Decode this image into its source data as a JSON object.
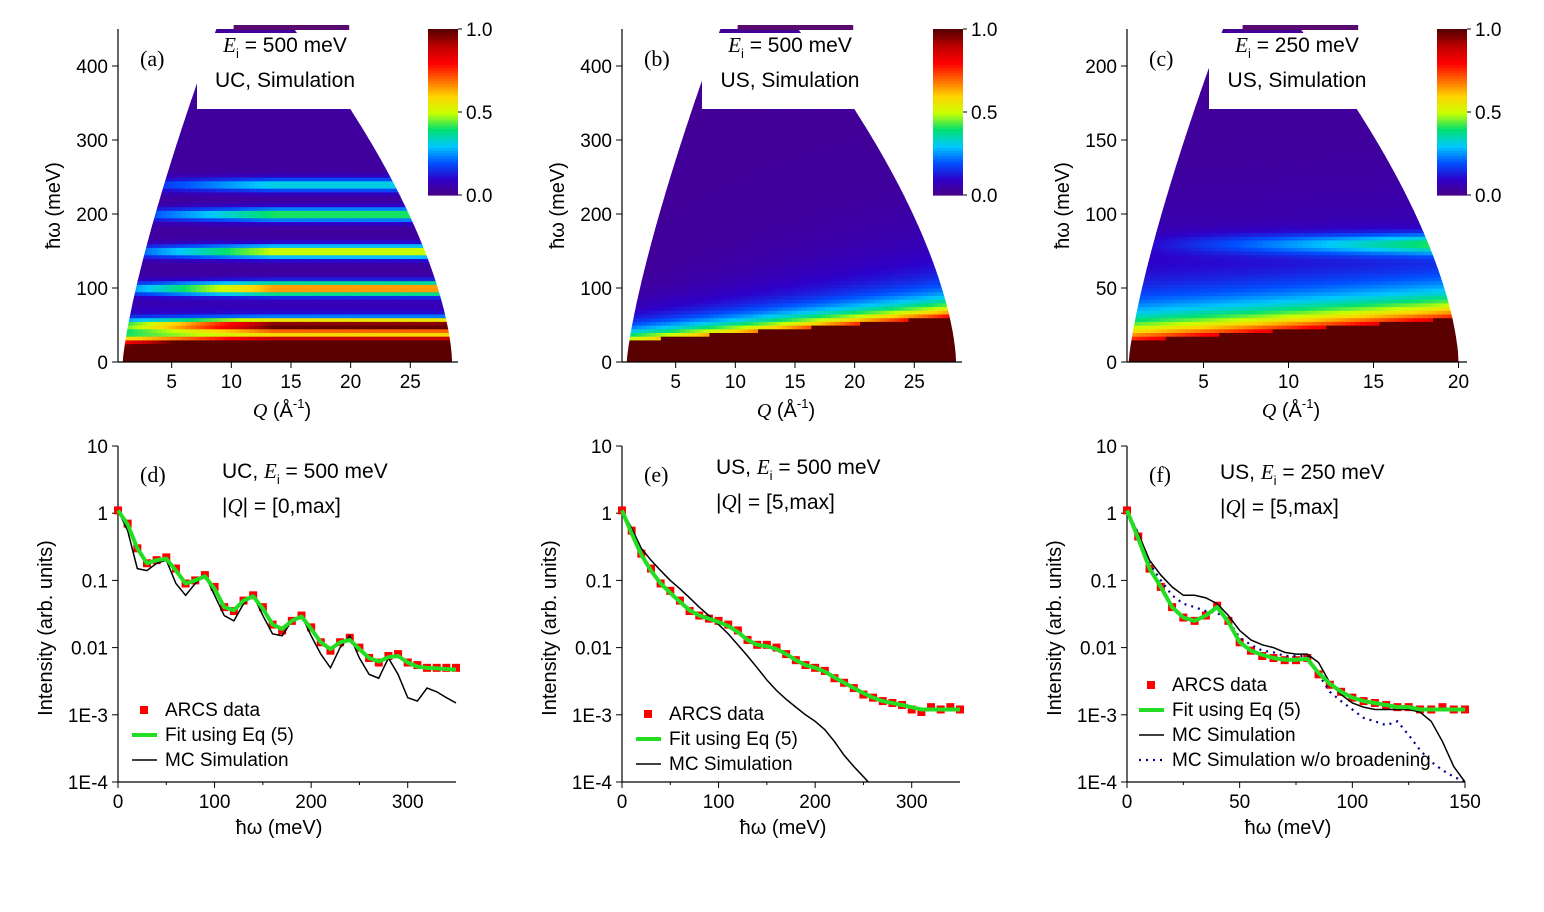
{
  "colorbar": {
    "stops": [
      "#4b0082",
      "#2e00c8",
      "#0050ff",
      "#00c8ff",
      "#00e070",
      "#c8ff00",
      "#ffd400",
      "#ff6a00",
      "#ff0000",
      "#c00000",
      "#5a0000"
    ]
  },
  "chart_data": [
    {
      "type": "heatmap",
      "panel": "(a)",
      "title_line1_sym": "E",
      "title_line1_sub": "i",
      "title_line1_rest": " = 500 meV",
      "title_line2": "UC, Simulation",
      "xlabel": "Q (Å-1)",
      "xlabel_sym": "Q",
      "xlabel_unit": "(Å",
      "xlabel_exp": "-1",
      "xlabel_close": ")",
      "ylabel": "ħω (meV)",
      "xlim": [
        0.5,
        29
      ],
      "ylim": [
        0,
        450
      ],
      "xticks": [
        5,
        10,
        15,
        20,
        25
      ],
      "yticks": [
        0,
        100,
        200,
        300,
        400
      ],
      "emax": 500,
      "qmax_at_0": 28.5,
      "qmin_at_0": 0.9,
      "colorbar_range": [
        0.0,
        1.0
      ],
      "colorbar_ticks": [
        "1.0",
        "0.5",
        "0.0"
      ],
      "features": "bright bands near 25, 50, 100, 150, 200 meV increasing intensity with Q"
    },
    {
      "type": "heatmap",
      "panel": "(b)",
      "title_line1_sym": "E",
      "title_line1_sub": "i",
      "title_line1_rest": " = 500 meV",
      "title_line2": "US, Simulation",
      "xlabel": "Q (Å-1)",
      "xlabel_sym": "Q",
      "xlabel_unit": "(Å",
      "xlabel_exp": "-1",
      "xlabel_close": ")",
      "ylabel": "ħω (meV)",
      "xlim": [
        0.5,
        29
      ],
      "ylim": [
        0,
        450
      ],
      "xticks": [
        5,
        10,
        15,
        20,
        25
      ],
      "yticks": [
        0,
        100,
        200,
        300,
        400
      ],
      "emax": 500,
      "qmax_at_0": 28.5,
      "qmin_at_0": 0.9,
      "colorbar_range": [
        0.0,
        1.0
      ],
      "colorbar_ticks": [
        "1.0",
        "0.5",
        "0.0"
      ],
      "features": "broad continuum rising from ~30 meV at low Q to ~70 meV at high Q"
    },
    {
      "type": "heatmap",
      "panel": "(c)",
      "title_line1_sym": "E",
      "title_line1_sub": "i",
      "title_line1_rest": " = 250 meV",
      "title_line2": "US, Simulation",
      "xlabel": "Q (Å-1)",
      "xlabel_sym": "Q",
      "xlabel_unit": "(Å",
      "xlabel_exp": "-1",
      "xlabel_close": ")",
      "ylabel": "ħω (meV)",
      "xlim": [
        0.5,
        20.5
      ],
      "ylim": [
        0,
        225
      ],
      "xticks": [
        5,
        10,
        15,
        20
      ],
      "yticks": [
        0,
        50,
        100,
        150,
        200
      ],
      "emax": 250,
      "qmax_at_0": 20.0,
      "qmin_at_0": 0.6,
      "colorbar_range": [
        0.0,
        1.0
      ],
      "colorbar_ticks": [
        "1.0",
        "0.5",
        "0.0"
      ],
      "features": "low-energy continuum band 15–45 meV, faint band near 80 meV at high Q"
    },
    {
      "type": "line",
      "panel": "(d)",
      "ann_line1_pre": "UC, ",
      "ann_line1_sym": "E",
      "ann_line1_sub": "i",
      "ann_line1_rest": " = 500 meV",
      "ann_line2_pre": "|",
      "ann_line2_sym": "Q",
      "ann_line2_rest": "| = [0,max]",
      "xlabel": "ħω (meV)",
      "ylabel": "Intensity (arb. units)",
      "xlim": [
        0,
        350
      ],
      "ylim": [
        0.0001,
        10
      ],
      "yscale": "log",
      "xticks": [
        "0",
        "100",
        "200",
        "300"
      ],
      "xtick_values": [
        0,
        100,
        200,
        300
      ],
      "yticks": [
        "1E-4",
        "1E-3",
        "0.01",
        "0.1",
        "1",
        "10"
      ],
      "ytick_values": [
        0.0001,
        0.001,
        0.01,
        0.1,
        1,
        10
      ],
      "legend": [
        "ARCS data",
        "Fit using Eq (5)",
        "MC Simulation"
      ],
      "series": [
        {
          "name": "ARCS data",
          "style": "square-markers",
          "color": "#ff0000",
          "x": [
            0,
            10,
            20,
            30,
            40,
            50,
            60,
            70,
            80,
            90,
            100,
            110,
            120,
            130,
            140,
            150,
            160,
            170,
            180,
            190,
            200,
            210,
            220,
            230,
            240,
            250,
            260,
            270,
            280,
            290,
            300,
            310,
            320,
            330,
            340,
            350
          ],
          "y": [
            1.1,
            0.7,
            0.3,
            0.18,
            0.2,
            0.22,
            0.15,
            0.09,
            0.1,
            0.12,
            0.08,
            0.04,
            0.035,
            0.05,
            0.06,
            0.04,
            0.022,
            0.018,
            0.025,
            0.03,
            0.02,
            0.012,
            0.009,
            0.012,
            0.014,
            0.01,
            0.007,
            0.006,
            0.0075,
            0.008,
            0.006,
            0.0055,
            0.005,
            0.005,
            0.005,
            0.005
          ]
        },
        {
          "name": "Fit using Eq (5)",
          "style": "line",
          "color": "#22dd22",
          "x": [
            0,
            10,
            20,
            30,
            40,
            50,
            60,
            70,
            80,
            90,
            100,
            110,
            120,
            130,
            140,
            150,
            160,
            170,
            180,
            190,
            200,
            210,
            220,
            230,
            240,
            250,
            260,
            270,
            280,
            290,
            300,
            310,
            320,
            330,
            340,
            350
          ],
          "y": [
            1.1,
            0.68,
            0.3,
            0.18,
            0.2,
            0.21,
            0.14,
            0.09,
            0.1,
            0.115,
            0.075,
            0.04,
            0.036,
            0.05,
            0.058,
            0.038,
            0.022,
            0.019,
            0.025,
            0.029,
            0.019,
            0.012,
            0.0095,
            0.012,
            0.013,
            0.0095,
            0.007,
            0.0062,
            0.0072,
            0.0075,
            0.006,
            0.0052,
            0.005,
            0.0049,
            0.0048,
            0.0047
          ]
        },
        {
          "name": "MC Simulation",
          "style": "line",
          "color": "#000000",
          "x": [
            0,
            10,
            20,
            30,
            40,
            50,
            60,
            70,
            80,
            90,
            100,
            110,
            120,
            130,
            140,
            150,
            160,
            170,
            180,
            190,
            200,
            210,
            220,
            230,
            240,
            250,
            260,
            270,
            280,
            290,
            300,
            310,
            320,
            330,
            340,
            350
          ],
          "y": [
            1.1,
            0.55,
            0.15,
            0.14,
            0.18,
            0.2,
            0.09,
            0.06,
            0.09,
            0.12,
            0.06,
            0.03,
            0.025,
            0.045,
            0.06,
            0.03,
            0.016,
            0.015,
            0.025,
            0.03,
            0.015,
            0.008,
            0.005,
            0.01,
            0.015,
            0.007,
            0.004,
            0.0035,
            0.007,
            0.004,
            0.0018,
            0.0016,
            0.0025,
            0.0022,
            0.0018,
            0.0015
          ]
        }
      ]
    },
    {
      "type": "line",
      "panel": "(e)",
      "ann_line1_pre": "US, ",
      "ann_line1_sym": "E",
      "ann_line1_sub": "i",
      "ann_line1_rest": " = 500 meV",
      "ann_line2_pre": "|",
      "ann_line2_sym": "Q",
      "ann_line2_rest": "| = [5,max]",
      "xlabel": "ħω (meV)",
      "ylabel": "Intensity (arb. units)",
      "xlim": [
        0,
        350
      ],
      "ylim": [
        0.0001,
        10
      ],
      "yscale": "log",
      "xticks": [
        "0",
        "100",
        "200",
        "300"
      ],
      "xtick_values": [
        0,
        100,
        200,
        300
      ],
      "yticks": [
        "1E-4",
        "1E-3",
        "0.01",
        "0.1",
        "1",
        "10"
      ],
      "ytick_values": [
        0.0001,
        0.001,
        0.01,
        0.1,
        1,
        10
      ],
      "legend": [
        "ARCS data",
        "Fit using Eq (5)",
        "MC Simulation"
      ],
      "series": [
        {
          "name": "ARCS data",
          "style": "square-markers",
          "color": "#ff0000",
          "x": [
            0,
            10,
            20,
            30,
            40,
            50,
            60,
            70,
            80,
            90,
            100,
            110,
            120,
            130,
            140,
            150,
            160,
            170,
            180,
            190,
            200,
            210,
            220,
            230,
            240,
            250,
            260,
            270,
            280,
            290,
            300,
            310,
            320,
            330,
            340,
            350
          ],
          "y": [
            1.1,
            0.55,
            0.25,
            0.15,
            0.09,
            0.07,
            0.05,
            0.035,
            0.03,
            0.027,
            0.025,
            0.022,
            0.018,
            0.013,
            0.011,
            0.011,
            0.01,
            0.008,
            0.0065,
            0.0055,
            0.005,
            0.0045,
            0.0035,
            0.003,
            0.0025,
            0.002,
            0.0018,
            0.0016,
            0.0015,
            0.0014,
            0.0012,
            0.0011,
            0.0013,
            0.0012,
            0.0013,
            0.0012
          ]
        },
        {
          "name": "Fit using Eq (5)",
          "style": "line",
          "color": "#22dd22",
          "x": [
            0,
            10,
            20,
            30,
            40,
            50,
            60,
            70,
            80,
            90,
            100,
            110,
            120,
            130,
            140,
            150,
            160,
            170,
            180,
            190,
            200,
            210,
            220,
            230,
            240,
            250,
            260,
            270,
            280,
            290,
            300,
            310,
            320,
            330,
            340,
            350
          ],
          "y": [
            1.1,
            0.5,
            0.24,
            0.14,
            0.09,
            0.065,
            0.048,
            0.036,
            0.03,
            0.027,
            0.024,
            0.021,
            0.017,
            0.013,
            0.011,
            0.0105,
            0.0095,
            0.008,
            0.0065,
            0.0055,
            0.005,
            0.0044,
            0.0036,
            0.003,
            0.0025,
            0.0021,
            0.0018,
            0.0016,
            0.0015,
            0.0014,
            0.0013,
            0.0012,
            0.0012,
            0.0012,
            0.0012,
            0.0012
          ]
        },
        {
          "name": "MC Simulation",
          "style": "line",
          "color": "#000000",
          "x": [
            0,
            10,
            20,
            30,
            40,
            50,
            60,
            70,
            80,
            90,
            100,
            110,
            120,
            130,
            140,
            150,
            160,
            170,
            180,
            190,
            200,
            210,
            220,
            230,
            240,
            250,
            255
          ],
          "y": [
            1.1,
            0.6,
            0.3,
            0.2,
            0.14,
            0.1,
            0.075,
            0.055,
            0.04,
            0.03,
            0.022,
            0.016,
            0.011,
            0.0075,
            0.005,
            0.0033,
            0.0023,
            0.0017,
            0.0013,
            0.001,
            0.0008,
            0.0006,
            0.0004,
            0.00025,
            0.00017,
            0.00012,
            0.0001
          ]
        }
      ]
    },
    {
      "type": "line",
      "panel": "(f)",
      "ann_line1_pre": "US, ",
      "ann_line1_sym": "E",
      "ann_line1_sub": "i",
      "ann_line1_rest": " = 250 meV",
      "ann_line2_pre": "|",
      "ann_line2_sym": "Q",
      "ann_line2_rest": "| = [5,max]",
      "xlabel": "ħω (meV)",
      "ylabel": "Intensity (arb. units)",
      "xlim": [
        0,
        150
      ],
      "ylim": [
        0.0001,
        10
      ],
      "yscale": "log",
      "xticks": [
        "0",
        "50",
        "100",
        "150"
      ],
      "xtick_values": [
        0,
        50,
        100,
        150
      ],
      "yticks": [
        "1E-4",
        "1E-3",
        "0.01",
        "0.1",
        "1",
        "10"
      ],
      "ytick_values": [
        0.0001,
        0.001,
        0.01,
        0.1,
        1,
        10
      ],
      "legend": [
        "ARCS data",
        "Fit using Eq (5)",
        "MC Simulation",
        "MC Simulation w/o broadening"
      ],
      "series": [
        {
          "name": "ARCS data",
          "style": "square-markers",
          "color": "#ff0000",
          "x": [
            0,
            5,
            10,
            15,
            20,
            25,
            30,
            35,
            40,
            45,
            50,
            55,
            60,
            65,
            70,
            75,
            80,
            85,
            90,
            95,
            100,
            105,
            110,
            115,
            120,
            125,
            130,
            135,
            140,
            145,
            150
          ],
          "y": [
            1.1,
            0.45,
            0.15,
            0.08,
            0.04,
            0.028,
            0.025,
            0.03,
            0.042,
            0.025,
            0.012,
            0.009,
            0.0075,
            0.007,
            0.0065,
            0.0065,
            0.007,
            0.004,
            0.0028,
            0.0022,
            0.0018,
            0.0016,
            0.0015,
            0.0014,
            0.0013,
            0.0013,
            0.0012,
            0.0012,
            0.0013,
            0.0012,
            0.0012
          ]
        },
        {
          "name": "Fit using Eq (5)",
          "style": "line",
          "color": "#22dd22",
          "x": [
            0,
            5,
            10,
            15,
            20,
            25,
            30,
            35,
            40,
            45,
            50,
            55,
            60,
            65,
            70,
            75,
            80,
            85,
            90,
            95,
            100,
            105,
            110,
            115,
            120,
            125,
            130,
            135,
            140,
            145,
            150
          ],
          "y": [
            1.1,
            0.42,
            0.15,
            0.08,
            0.04,
            0.028,
            0.025,
            0.03,
            0.04,
            0.024,
            0.012,
            0.009,
            0.0078,
            0.007,
            0.0066,
            0.0066,
            0.0068,
            0.0042,
            0.0029,
            0.0022,
            0.0018,
            0.0016,
            0.0015,
            0.0014,
            0.0013,
            0.0013,
            0.0012,
            0.0012,
            0.0012,
            0.0012,
            0.0012
          ]
        },
        {
          "name": "MC Simulation",
          "style": "line",
          "color": "#000000",
          "x": [
            0,
            5,
            10,
            15,
            20,
            25,
            30,
            35,
            40,
            45,
            50,
            55,
            60,
            65,
            70,
            75,
            80,
            85,
            90,
            95,
            100,
            105,
            110,
            115,
            120,
            125,
            130,
            135,
            140,
            145,
            150
          ],
          "y": [
            1.1,
            0.5,
            0.2,
            0.12,
            0.08,
            0.06,
            0.06,
            0.055,
            0.045,
            0.03,
            0.018,
            0.013,
            0.011,
            0.01,
            0.0085,
            0.008,
            0.008,
            0.006,
            0.003,
            0.002,
            0.0015,
            0.0013,
            0.0012,
            0.0012,
            0.0012,
            0.0012,
            0.0011,
            0.0008,
            0.0004,
            0.00017,
            0.0001
          ]
        },
        {
          "name": "MC Simulation w/o broadening",
          "style": "dotted",
          "color": "#000088",
          "x": [
            0,
            5,
            10,
            15,
            20,
            25,
            30,
            35,
            40,
            45,
            50,
            55,
            60,
            65,
            70,
            75,
            80,
            85,
            90,
            95,
            100,
            105,
            110,
            115,
            120,
            125,
            130,
            135,
            140,
            145,
            150
          ],
          "y": [
            1.1,
            0.5,
            0.18,
            0.1,
            0.06,
            0.045,
            0.04,
            0.035,
            0.033,
            0.025,
            0.014,
            0.011,
            0.009,
            0.0085,
            0.0075,
            0.0075,
            0.0075,
            0.004,
            0.0022,
            0.0016,
            0.0012,
            0.0009,
            0.0008,
            0.0007,
            0.0008,
            0.0005,
            0.0003,
            0.0002,
            0.00015,
            0.00012,
            0.0001
          ]
        }
      ]
    }
  ]
}
